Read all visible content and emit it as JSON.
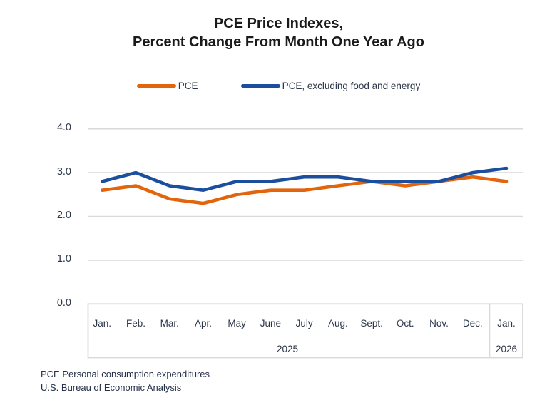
{
  "title": {
    "line1": "PCE Price Indexes,",
    "line2": "Percent Change From Month One Year Ago"
  },
  "legend": {
    "items": [
      {
        "label": "PCE",
        "color": "#E2650D"
      },
      {
        "label": "PCE, excluding food and energy",
        "color": "#1B4F9E"
      }
    ]
  },
  "chart_data": {
    "type": "line",
    "title": "PCE Price Indexes, Percent Change From Month One Year Ago",
    "categories": [
      "Jan.",
      "Feb.",
      "Mar.",
      "Apr.",
      "May",
      "June",
      "July",
      "Aug.",
      "Sept.",
      "Oct.",
      "Nov.",
      "Dec.",
      "Jan."
    ],
    "year_groups": [
      {
        "label": "2025",
        "start": 0,
        "end": 11
      },
      {
        "label": "2026",
        "start": 12,
        "end": 12
      }
    ],
    "series": [
      {
        "name": "PCE",
        "color": "#E2650D",
        "values": [
          2.6,
          2.7,
          2.4,
          2.3,
          2.5,
          2.6,
          2.6,
          2.7,
          2.8,
          2.7,
          2.8,
          2.9,
          2.8
        ]
      },
      {
        "name": "PCE, excluding food and energy",
        "color": "#1B4F9E",
        "values": [
          2.8,
          3.0,
          2.7,
          2.6,
          2.8,
          2.8,
          2.9,
          2.9,
          2.8,
          2.8,
          2.8,
          3.0,
          3.1
        ]
      }
    ],
    "ylim": [
      0.0,
      4.0
    ],
    "yticks": [
      "0.0",
      "1.0",
      "2.0",
      "3.0",
      "4.0"
    ],
    "grid": true,
    "gridline_color": "#D9D9D9",
    "legend_position": "top"
  },
  "footer": {
    "line1": "PCE Personal consumption expenditures",
    "line2": "U.S. Bureau of Economic Analysis"
  }
}
